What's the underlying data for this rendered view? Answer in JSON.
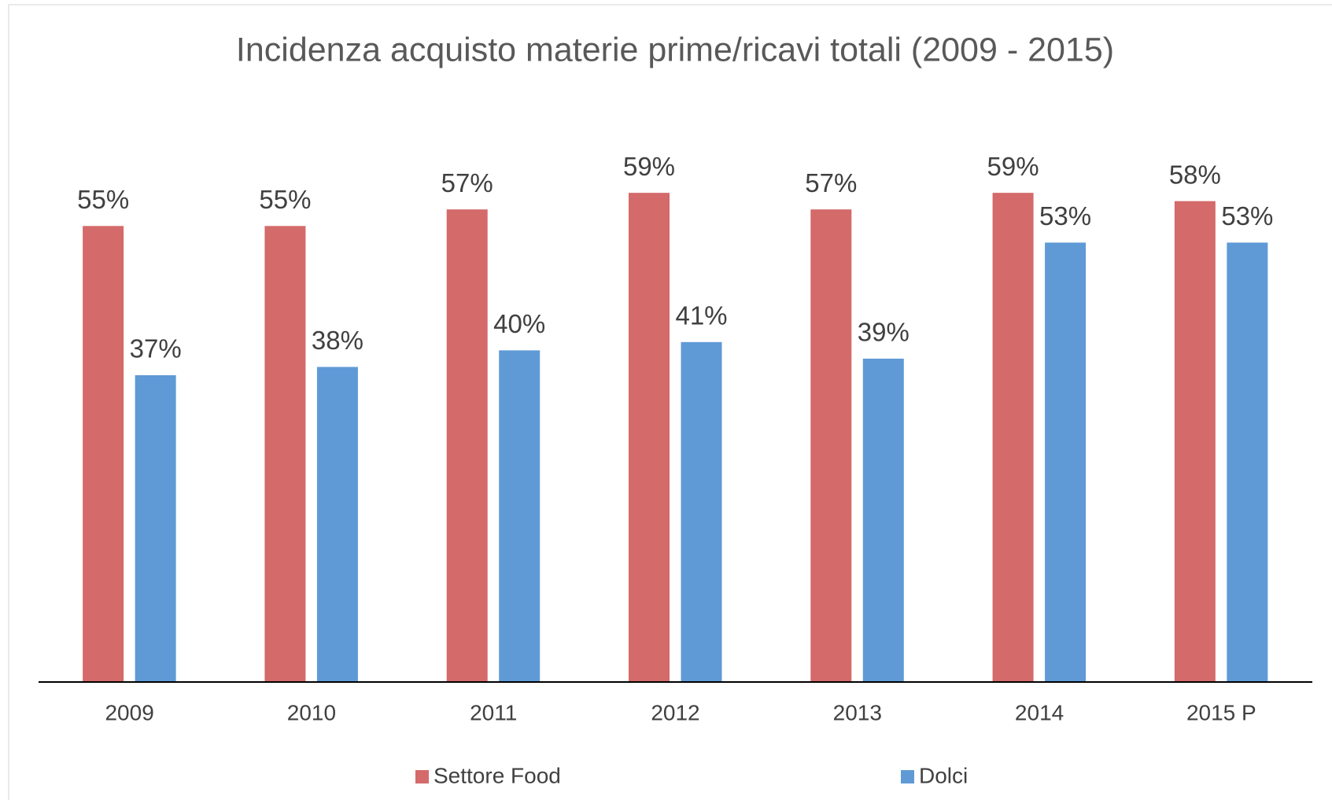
{
  "chart_data": {
    "type": "bar",
    "title": "Incidenza acquisto materie prime/ricavi totali (2009 - 2015)",
    "categories": [
      "2009",
      "2010",
      "2011",
      "2012",
      "2013",
      "2014",
      "2015 P"
    ],
    "series": [
      {
        "name": "Settore Food",
        "color": "#d46a6a",
        "values": [
          55,
          55,
          57,
          59,
          57,
          59,
          58
        ],
        "value_labels": [
          "55%",
          "55%",
          "57%",
          "59%",
          "57%",
          "59%",
          "58%"
        ]
      },
      {
        "name": "Dolci",
        "color": "#5f9ad6",
        "values": [
          37,
          38,
          40,
          41,
          39,
          53,
          53
        ],
        "value_labels": [
          "37%",
          "38%",
          "40%",
          "41%",
          "39%",
          "53%",
          "53%"
        ]
      }
    ],
    "legend": "bottom"
  }
}
